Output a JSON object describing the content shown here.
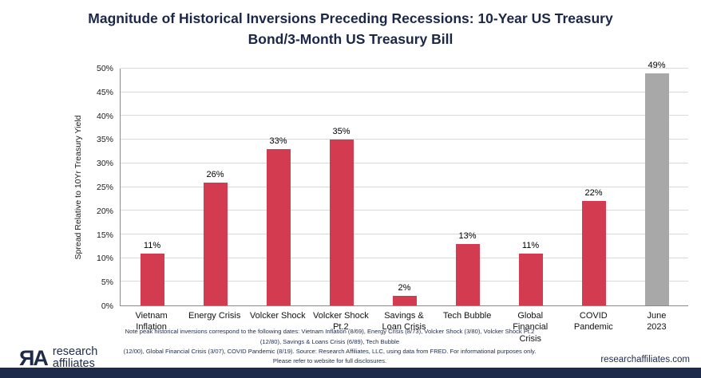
{
  "page": {
    "title": "Magnitude of Historical Inversions Preceding Recessions: 10-Year US Treasury Bond/3-Month US Treasury Bill"
  },
  "chart_data": {
    "type": "bar",
    "title": "Magnitude of Historical Inversions Preceding Recessions: 10-Year US Treasury Bond/3-Month US Treasury Bill",
    "categories": [
      "Vietnam Inflation",
      "Energy Crisis",
      "Volcker Shock",
      "Volcker Shock Pt.2",
      "Savings & Loan Crisis",
      "Tech Bubble",
      "Global Financial Crisis",
      "COVID Pandemic",
      "June 2023"
    ],
    "category_display": [
      "Vietnam\nInflation",
      "Energy Crisis",
      "Volcker Shock",
      "Volcker Shock\nPt.2",
      "Savings &\nLoan Crisis",
      "Tech Bubble",
      "Global\nFinancial\nCrisis",
      "COVID\nPandemic",
      "June\n2023"
    ],
    "values": [
      11,
      26,
      33,
      35,
      2,
      13,
      11,
      22,
      49
    ],
    "bar_labels": [
      "11%",
      "26%",
      "33%",
      "35%",
      "2%",
      "13%",
      "11%",
      "22%",
      "49%"
    ],
    "xlabel": "",
    "ylabel": "Spread Relative to 10Yr Treasury Yield",
    "ylim": [
      0,
      50
    ],
    "yticks": [
      0,
      5,
      10,
      15,
      20,
      25,
      30,
      35,
      40,
      45,
      50
    ],
    "ytick_labels": [
      "0%",
      "5%",
      "10%",
      "15%",
      "20%",
      "25%",
      "30%",
      "35%",
      "40%",
      "45%",
      "50%"
    ],
    "grid": true,
    "legend": false,
    "bar_color": "#d33b50",
    "highlight_color": "#a8a8a8",
    "highlight_index": 8
  },
  "colors": {
    "navy": "#1d2a4a",
    "title_navy": "#1a2747"
  },
  "footer": {
    "logo_icon": "ЯA",
    "logo_line1": "research",
    "logo_line2": "affiliates",
    "note_line1": "Note peak historical inversions correspond to the following dates: Vietnam Inflation (8/69), Energy Crisis (8/73), Volcker Shock (3/80), Volcker Shock Pt.2 (12/80), Savings & Loans Crisis (6/89), Tech Bubble",
    "note_line2": "(12/00), Global Financial Crisis (3/07), COVID Pandemic (8/19). Source: Research Affiliates, LLC, using data from FRED. For informational purposes only. Please refer to website for full disclosures.",
    "website": "researchaffiliates.com"
  }
}
